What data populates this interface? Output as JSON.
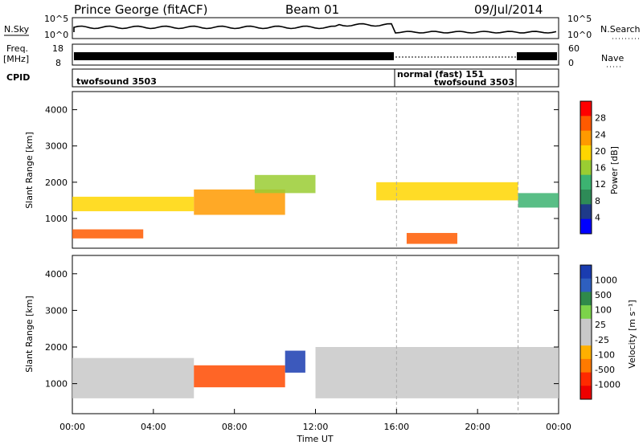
{
  "header": {
    "station": "Prince George (fitACF)",
    "beam": "Beam 01",
    "date": "09/Jul/2014"
  },
  "strips": {
    "nsky_label": "N.Sky",
    "nsearch_label": "N.Search",
    "nsky_ticks": [
      "10^5",
      "10^0"
    ],
    "nsearch_ticks": [
      "10^5",
      "10^0"
    ],
    "freq_label_1": "Freq.",
    "freq_label_2": "[MHz]",
    "freq_ticks": [
      "18",
      "8"
    ],
    "nave_label": "Nave",
    "nave_ticks": [
      "60",
      "0"
    ],
    "cpid_label": "CPID",
    "cpid_segments": [
      {
        "label": "twofsound 3503",
        "start_h": 0,
        "end_h": 16
      },
      {
        "label": "normal (fast) 151",
        "start_h": 16,
        "end_h": 22
      },
      {
        "label": "twofsound 3503",
        "start_h": 16,
        "end_h": 22
      }
    ]
  },
  "power_panel": {
    "ylabel": "Slant Range [km]",
    "cbar_label": "Power [dB]",
    "cbar_ticks": [
      "28",
      "24",
      "20",
      "16",
      "12",
      "8",
      "4"
    ],
    "cbar_colors": [
      "#ff0000",
      "#ff5a00",
      "#ff9a00",
      "#ffd600",
      "#9acd32",
      "#3cb371",
      "#2e8b57",
      "#1e3a8a",
      "#0000ff"
    ]
  },
  "velocity_panel": {
    "ylabel": "Slant Range [km]",
    "cbar_label": "Velocity [m s⁻¹]",
    "cbar_ticks": [
      "1000",
      "500",
      "100",
      "25",
      "-25",
      "-100",
      "-500",
      "-1000"
    ],
    "cbar_colors": [
      "#1a3cb0",
      "#2e5fbf",
      "#2f8a4a",
      "#7cd34a",
      "#c8c8c8",
      "#c8c8c8",
      "#ffb000",
      "#ff7a00",
      "#ff2a00",
      "#ee0000"
    ]
  },
  "x_axis": {
    "label": "Time UT",
    "ticks": [
      "00:00",
      "04:00",
      "08:00",
      "12:00",
      "16:00",
      "20:00",
      "00:00"
    ]
  },
  "chart_data": {
    "type": "heatmap",
    "title": "Prince George (fitACF)  Beam 01  09/Jul/2014",
    "xlabel": "Time UT",
    "ylabel": "Slant Range [km]",
    "xlim_hours": [
      0,
      24
    ],
    "ylim_km": [
      180,
      4500
    ],
    "y_ticks": [
      1000,
      2000,
      3000,
      4000
    ],
    "panels": [
      {
        "name": "Power [dB]",
        "colorbar_ticks": [
          4,
          8,
          12,
          16,
          20,
          24,
          28
        ],
        "bands": [
          {
            "start_h": 0.0,
            "end_h": 3.5,
            "range_km": [
              450,
              700
            ],
            "value": 24
          },
          {
            "start_h": 0.0,
            "end_h": 6.0,
            "range_km": [
              1200,
              1600
            ],
            "value": 20
          },
          {
            "start_h": 6.0,
            "end_h": 10.5,
            "range_km": [
              1100,
              1800
            ],
            "value": 22
          },
          {
            "start_h": 9.0,
            "end_h": 12.0,
            "range_km": [
              1700,
              2200
            ],
            "value": 16
          },
          {
            "start_h": 15.0,
            "end_h": 22.0,
            "range_km": [
              1500,
              2000
            ],
            "value": 18
          },
          {
            "start_h": 16.5,
            "end_h": 19.0,
            "range_km": [
              300,
              600
            ],
            "value": 24
          },
          {
            "start_h": 22.0,
            "end_h": 24.0,
            "range_km": [
              1300,
              1700
            ],
            "value": 14
          }
        ]
      },
      {
        "name": "Velocity [m s⁻¹]",
        "colorbar_ticks": [
          -1000,
          -500,
          -100,
          -25,
          25,
          100,
          500,
          1000
        ],
        "bands": [
          {
            "start_h": 0.0,
            "end_h": 6.0,
            "range_km": [
              600,
              1700
            ],
            "value": 0
          },
          {
            "start_h": 6.0,
            "end_h": 10.5,
            "range_km": [
              900,
              1500
            ],
            "value": -500
          },
          {
            "start_h": 10.5,
            "end_h": 11.5,
            "range_km": [
              1300,
              1900
            ],
            "value": 500
          },
          {
            "start_h": 12.0,
            "end_h": 24.0,
            "range_km": [
              600,
              2000
            ],
            "value": 0
          }
        ]
      }
    ],
    "vertical_markers_h": [
      16,
      22
    ]
  }
}
